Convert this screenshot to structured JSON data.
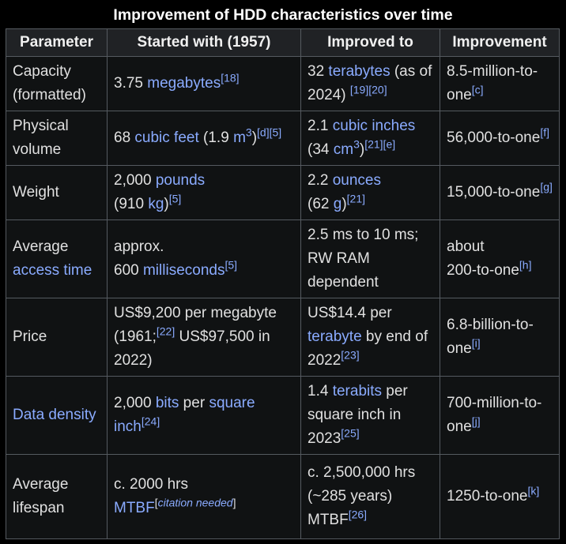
{
  "caption": "Improvement of HDD characteristics over time",
  "headers": [
    "Parameter",
    "Started with (1957)",
    "Improved to",
    "Improvement"
  ],
  "rows": {
    "capacity": {
      "param_a": "Capacity",
      "param_b": "(formatted)",
      "start_num": "3.75 ",
      "start_link": "megabytes",
      "start_ref": "[18]",
      "imp_num": "32 ",
      "imp_link": "terabytes",
      "imp_rest": " (as of 2024) ",
      "imp_ref": "[19][20]",
      "ratio": "8.5-million-to-one",
      "ratio_ref": "[c]"
    },
    "volume": {
      "param_a": "Physical",
      "param_b": "volume",
      "start_num": "68 ",
      "start_link": "cubic feet",
      "start_mid": " (1.9 ",
      "start_unit": "m",
      "start_exp": "3",
      "start_close": ")",
      "start_ref": "[d][5]",
      "imp_num": "2.1 ",
      "imp_link": "cubic inches",
      "imp_mid": " (34 ",
      "imp_unit": "cm",
      "imp_exp": "3",
      "imp_close": ")",
      "imp_ref": "[21][e]",
      "ratio": "56,000-to-one",
      "ratio_ref": "[f]"
    },
    "weight": {
      "param": "Weight",
      "start_num": "2,000 ",
      "start_link": "pounds",
      "start_mid": "(910 ",
      "start_unit": "kg",
      "start_close": ")",
      "start_ref": "[5]",
      "imp_num": "2.2 ",
      "imp_link": "ounces",
      "imp_mid": "(62 ",
      "imp_unit": "g",
      "imp_close": ")",
      "imp_ref": "[21]",
      "ratio": "15,000-to-one",
      "ratio_ref": "[g]"
    },
    "access": {
      "param_a": "Average",
      "param_link": "access time",
      "start_a": "approx.",
      "start_num": "600 ",
      "start_link": "milliseconds",
      "start_ref": "[5]",
      "imp": "2.5 ms to 10 ms; RW RAM dependent",
      "ratio_a": "about",
      "ratio_b": "200-to-one",
      "ratio_ref": "[h]"
    },
    "price": {
      "param": "Price",
      "start_a": "US$9,200 per megabyte (1961;",
      "start_ref": "[22]",
      "start_b": " US$97,500 in 2022)",
      "imp_a": "US$14.4 per ",
      "imp_link": "terabyte",
      "imp_b": " by end of 2022",
      "imp_ref": "[23]",
      "ratio": "6.8-billion-to-one",
      "ratio_ref": "[i]"
    },
    "density": {
      "param_link": "Data density",
      "start_num": "2,000 ",
      "start_link1": "bits",
      "start_mid": " per ",
      "start_link2": "square inch",
      "start_ref": "[24]",
      "imp_num": "1.4 ",
      "imp_link": "terabits",
      "imp_b": " per square inch in 2023",
      "imp_ref": "[25]",
      "ratio": "700-million-to-one",
      "ratio_ref": "[j]"
    },
    "lifespan": {
      "param_a": "Average",
      "param_b": "lifespan",
      "start_a": "c. 2000 hrs",
      "start_link": "MTBF",
      "start_ref_open": "[",
      "start_ref_cn": "citation needed",
      "start_ref_close": "]",
      "imp_a": "c. 2,500,000 hrs (~285 years) MTBF",
      "imp_ref": "[26]",
      "ratio": "1250-to-one",
      "ratio_ref": "[k]"
    }
  },
  "colors": {
    "background": "#000000",
    "header_bg": "#202225",
    "cell_bg": "#101213",
    "border": "#555a60",
    "link": "#8aabff",
    "text": "#e0e0e0"
  }
}
